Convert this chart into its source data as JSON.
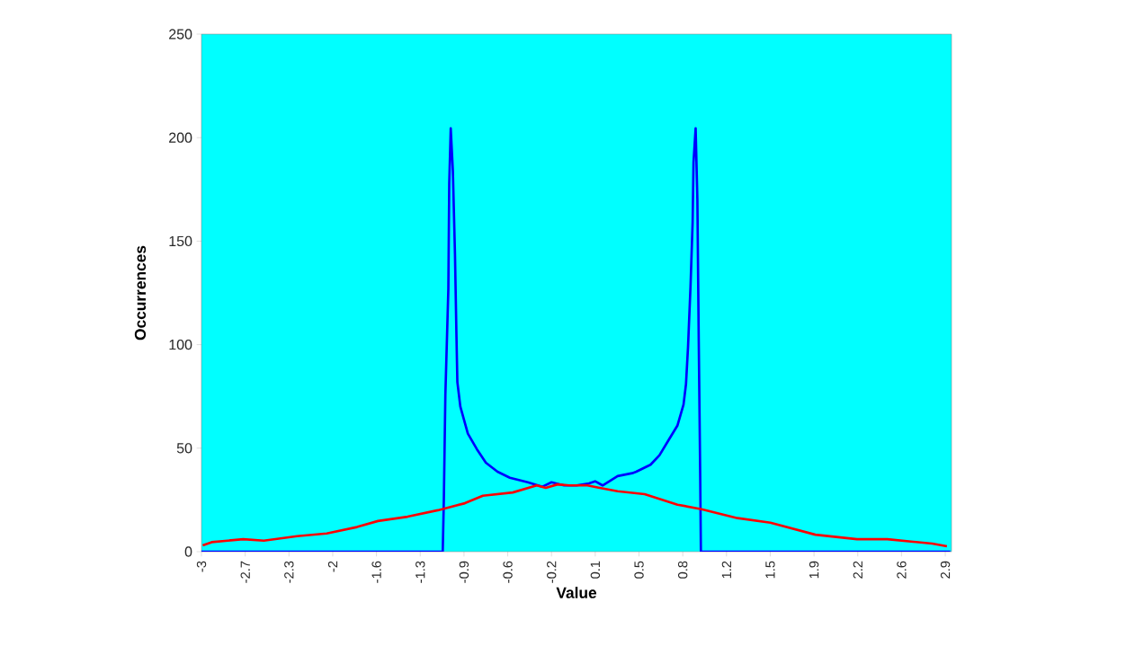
{
  "chart_data": {
    "type": "line",
    "xlabel": "Value",
    "ylabel": "Occurrences",
    "xlim": [
      -3,
      3
    ],
    "ylim": [
      0,
      250
    ],
    "yticks": [
      0,
      50,
      100,
      150,
      200,
      250
    ],
    "xticks": [
      {
        "value": -3,
        "label": "-3"
      },
      {
        "value": -2.65,
        "label": "-2.7"
      },
      {
        "value": -2.3,
        "label": "-2.3"
      },
      {
        "value": -1.95,
        "label": "-2"
      },
      {
        "value": -1.6,
        "label": "-1.6"
      },
      {
        "value": -1.25,
        "label": "-1.3"
      },
      {
        "value": -0.9,
        "label": "-0.9"
      },
      {
        "value": -0.55,
        "label": "-0.6"
      },
      {
        "value": -0.2,
        "label": "-0.2"
      },
      {
        "value": 0.15,
        "label": "0.1"
      },
      {
        "value": 0.5,
        "label": "0.5"
      },
      {
        "value": 0.85,
        "label": "0.8"
      },
      {
        "value": 1.2,
        "label": "1.2"
      },
      {
        "value": 1.55,
        "label": "1.5"
      },
      {
        "value": 1.9,
        "label": "1.9"
      },
      {
        "value": 2.25,
        "label": "2.2"
      },
      {
        "value": 2.6,
        "label": "2.6"
      },
      {
        "value": 2.95,
        "label": "2.9"
      }
    ],
    "marker": "none",
    "line_style": "solid",
    "series": [
      {
        "color": "#0000ff",
        "x": [
          -3,
          -1.07,
          -1.061,
          -1.049,
          -1.025,
          -1.018,
          -1.006,
          -0.989,
          -0.972,
          -0.96,
          -0.953,
          -0.929,
          -0.869,
          -0.797,
          -0.725,
          -0.632,
          -0.533,
          -0.39,
          -0.272,
          -0.2,
          -0.1,
          0,
          0.1,
          0.149,
          0.209,
          0.329,
          0.446,
          0.478,
          0.592,
          0.664,
          0.736,
          0.808,
          0.856,
          0.876,
          0.892,
          0.912,
          0.929,
          0.936,
          0.953,
          0.967,
          0.978,
          0.99,
          0.995,
          2.99
        ],
        "values": [
          0,
          0,
          25.6,
          75.5,
          127,
          178,
          204.5,
          184,
          143.6,
          103.7,
          82,
          70,
          57,
          49.5,
          43,
          38.6,
          35.7,
          33.5,
          31.4,
          33.5,
          32,
          32,
          33,
          34,
          32,
          36.5,
          37.9,
          38.6,
          42,
          46.6,
          53.8,
          61,
          71,
          81,
          98.7,
          128,
          159,
          188,
          204.5,
          170,
          101.6,
          34,
          0,
          0
        ]
      },
      {
        "color": "#ff0000",
        "x": [
          -2.99,
          -2.918,
          -2.666,
          -2.501,
          -2.235,
          -1.998,
          -1.756,
          -1.588,
          -1.351,
          -1.109,
          -0.893,
          -0.749,
          -0.51,
          -0.318,
          -0.246,
          -0.151,
          -0.057,
          0.087,
          0.185,
          0.329,
          0.545,
          0.808,
          1.0,
          1.288,
          1.551,
          1.911,
          2.244,
          2.486,
          2.845,
          2.963
        ],
        "values": [
          3,
          4.6,
          6,
          5.3,
          7.5,
          8.8,
          11.9,
          14.8,
          16.9,
          20,
          23.4,
          27,
          28.6,
          32,
          30.8,
          32.5,
          32,
          32,
          30.8,
          29.2,
          27.8,
          22.7,
          20.5,
          16.2,
          14,
          8.2,
          6,
          6,
          3.9,
          2.6
        ]
      }
    ]
  }
}
